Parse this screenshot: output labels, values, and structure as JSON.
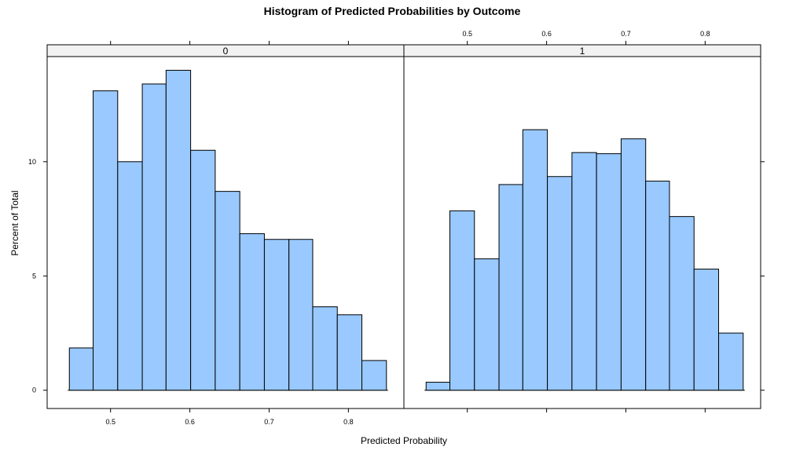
{
  "chart_data": {
    "type": "bar",
    "title": "Histogram of Predicted Probabilities by Outcome",
    "xlabel": "Predicted Probability",
    "ylabel": "Percent of Total",
    "xlim": [
      0.42,
      0.87
    ],
    "ylim": [
      -0.8,
      14.6
    ],
    "x_ticks": [
      0.5,
      0.6,
      0.7,
      0.8
    ],
    "x_tick_labels": [
      "0.5",
      "0.6",
      "0.7",
      "0.8"
    ],
    "y_ticks": [
      0,
      5,
      10
    ],
    "y_tick_labels": [
      "0",
      "5",
      "10"
    ],
    "bar_color": "#99c9fe",
    "strip_color": "#f2f2f2",
    "panels": [
      {
        "label": "0",
        "bins": [
          {
            "x0": 0.448,
            "x1": 0.478,
            "value": 1.85
          },
          {
            "x0": 0.478,
            "x1": 0.509,
            "value": 13.1
          },
          {
            "x0": 0.509,
            "x1": 0.54,
            "value": 10.0
          },
          {
            "x0": 0.54,
            "x1": 0.57,
            "value": 13.4
          },
          {
            "x0": 0.57,
            "x1": 0.601,
            "value": 14.0
          },
          {
            "x0": 0.601,
            "x1": 0.632,
            "value": 10.5
          },
          {
            "x0": 0.632,
            "x1": 0.663,
            "value": 8.7
          },
          {
            "x0": 0.663,
            "x1": 0.694,
            "value": 6.85
          },
          {
            "x0": 0.694,
            "x1": 0.725,
            "value": 6.6
          },
          {
            "x0": 0.725,
            "x1": 0.755,
            "value": 6.6
          },
          {
            "x0": 0.755,
            "x1": 0.786,
            "value": 3.65
          },
          {
            "x0": 0.786,
            "x1": 0.817,
            "value": 3.3
          },
          {
            "x0": 0.817,
            "x1": 0.848,
            "value": 1.3
          }
        ]
      },
      {
        "label": "1",
        "bins": [
          {
            "x0": 0.448,
            "x1": 0.478,
            "value": 0.35
          },
          {
            "x0": 0.478,
            "x1": 0.509,
            "value": 7.85
          },
          {
            "x0": 0.509,
            "x1": 0.54,
            "value": 5.75
          },
          {
            "x0": 0.54,
            "x1": 0.57,
            "value": 9.0
          },
          {
            "x0": 0.57,
            "x1": 0.601,
            "value": 11.4
          },
          {
            "x0": 0.601,
            "x1": 0.632,
            "value": 9.35
          },
          {
            "x0": 0.632,
            "x1": 0.663,
            "value": 10.4
          },
          {
            "x0": 0.663,
            "x1": 0.694,
            "value": 10.35
          },
          {
            "x0": 0.694,
            "x1": 0.725,
            "value": 11.0
          },
          {
            "x0": 0.725,
            "x1": 0.755,
            "value": 9.15
          },
          {
            "x0": 0.755,
            "x1": 0.786,
            "value": 7.6
          },
          {
            "x0": 0.786,
            "x1": 0.817,
            "value": 5.3
          },
          {
            "x0": 0.817,
            "x1": 0.848,
            "value": 2.5
          }
        ]
      }
    ]
  }
}
